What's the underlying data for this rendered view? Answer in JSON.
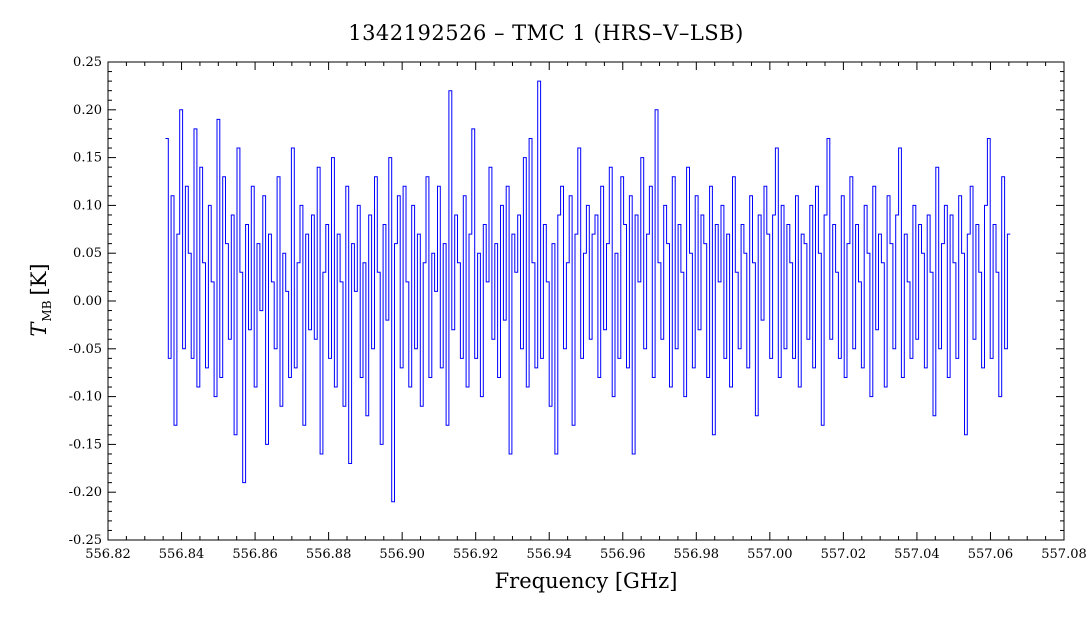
{
  "chart_data": {
    "type": "line",
    "title": "1342192526 – TMC 1 (HRS–V–LSB)",
    "xlabel": "Frequency [GHz]",
    "ylabel": {
      "symbol": "T",
      "subscript": "MB",
      "unit": "[K]"
    },
    "xlim": [
      556.82,
      557.08
    ],
    "ylim": [
      -0.25,
      0.25
    ],
    "x_ticks": [
      "556.82",
      "556.84",
      "556.86",
      "556.88",
      "556.90",
      "556.92",
      "556.94",
      "556.96",
      "556.98",
      "557.00",
      "557.02",
      "557.04",
      "557.06",
      "557.08"
    ],
    "y_ticks": [
      "-0.25",
      "-0.20",
      "-0.15",
      "-0.10",
      "-0.05",
      "0.00",
      "0.05",
      "0.10",
      "0.15",
      "0.20",
      "0.25"
    ],
    "grid": false,
    "series": [
      {
        "color": "#0000ff",
        "x_start": 556.836,
        "x_end": 557.065,
        "values": [
          0.17,
          -0.06,
          0.11,
          -0.13,
          0.07,
          0.2,
          -0.05,
          0.12,
          0.05,
          -0.06,
          0.18,
          -0.09,
          0.14,
          0.04,
          -0.07,
          0.1,
          0.02,
          -0.1,
          0.19,
          -0.08,
          0.13,
          0.06,
          -0.04,
          0.09,
          -0.14,
          0.16,
          0.03,
          -0.19,
          0.08,
          -0.03,
          0.12,
          -0.09,
          0.06,
          -0.01,
          0.11,
          -0.15,
          0.07,
          0.02,
          -0.05,
          0.13,
          -0.11,
          0.05,
          0.01,
          -0.08,
          0.16,
          -0.07,
          0.04,
          0.1,
          -0.13,
          0.07,
          -0.03,
          0.09,
          -0.04,
          0.14,
          -0.16,
          0.03,
          0.08,
          -0.06,
          0.15,
          -0.09,
          0.07,
          0.02,
          -0.11,
          0.12,
          -0.17,
          0.06,
          0.01,
          0.1,
          -0.08,
          0.04,
          -0.12,
          0.09,
          -0.05,
          0.13,
          0.03,
          -0.15,
          0.08,
          -0.02,
          0.15,
          -0.21,
          0.06,
          0.11,
          -0.07,
          0.12,
          0.02,
          -0.09,
          0.1,
          -0.05,
          0.07,
          -0.11,
          0.04,
          0.13,
          -0.08,
          0.05,
          0.01,
          0.12,
          -0.07,
          0.06,
          -0.13,
          0.22,
          -0.03,
          0.09,
          0.04,
          -0.06,
          0.11,
          -0.09,
          0.07,
          0.18,
          -0.06,
          0.05,
          -0.1,
          0.08,
          0.02,
          0.14,
          -0.04,
          0.06,
          -0.08,
          0.1,
          -0.02,
          0.12,
          -0.16,
          0.07,
          0.03,
          0.09,
          -0.05,
          0.15,
          -0.09,
          0.17,
          0.04,
          -0.07,
          0.23,
          -0.06,
          0.08,
          0.02,
          -0.11,
          0.06,
          -0.16,
          0.09,
          0.12,
          -0.05,
          0.04,
          0.11,
          -0.13,
          0.07,
          0.16,
          -0.06,
          0.05,
          0.1,
          -0.04,
          0.07,
          0.09,
          -0.08,
          0.12,
          -0.03,
          0.06,
          0.14,
          -0.1,
          0.05,
          -0.06,
          0.13,
          0.08,
          -0.07,
          0.11,
          -0.16,
          0.09,
          0.02,
          0.15,
          -0.05,
          0.07,
          0.12,
          -0.08,
          0.2,
          0.04,
          -0.04,
          0.1,
          0.06,
          -0.09,
          0.13,
          -0.05,
          0.08,
          0.03,
          -0.1,
          0.14,
          0.05,
          -0.07,
          0.11,
          -0.03,
          0.09,
          0.06,
          -0.08,
          0.12,
          -0.14,
          0.08,
          0.02,
          0.1,
          -0.06,
          0.07,
          -0.09,
          0.13,
          0.03,
          -0.05,
          0.08,
          0.05,
          -0.07,
          0.11,
          0.04,
          -0.12,
          0.09,
          -0.02,
          0.12,
          0.07,
          -0.06,
          0.09,
          0.16,
          -0.08,
          0.1,
          -0.05,
          0.08,
          0.04,
          -0.06,
          0.11,
          -0.09,
          0.07,
          0.06,
          -0.04,
          0.1,
          -0.07,
          0.12,
          0.05,
          -0.13,
          0.09,
          0.17,
          -0.04,
          0.08,
          0.03,
          -0.06,
          0.11,
          -0.08,
          0.06,
          0.13,
          -0.05,
          0.08,
          0.02,
          -0.07,
          0.1,
          0.05,
          -0.1,
          0.12,
          -0.03,
          0.07,
          0.04,
          -0.09,
          0.11,
          0.06,
          -0.05,
          0.09,
          0.16,
          -0.08,
          0.07,
          0.02,
          -0.06,
          0.1,
          -0.04,
          0.08,
          0.05,
          -0.07,
          0.09,
          0.03,
          -0.12,
          0.14,
          -0.05,
          0.06,
          0.1,
          -0.08,
          0.09,
          0.04,
          -0.06,
          0.11,
          0.05,
          -0.14,
          0.07,
          0.12,
          -0.04,
          0.08,
          0.03,
          -0.07,
          0.1,
          0.17,
          -0.06,
          0.08,
          0.03,
          -0.1,
          0.13,
          -0.05,
          0.07
        ]
      }
    ]
  }
}
